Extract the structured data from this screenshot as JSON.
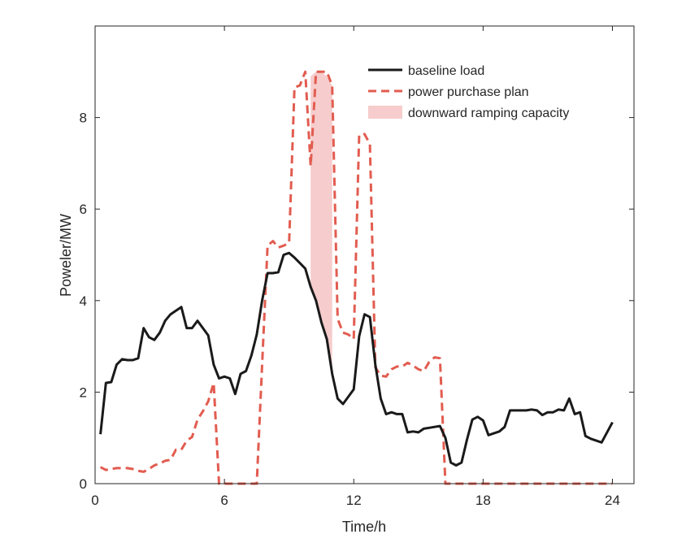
{
  "chart_data": {
    "type": "line",
    "xlabel": "Time/h",
    "ylabel": "Poweler/MW",
    "xlim": [
      0,
      25
    ],
    "ylim": [
      0,
      10
    ],
    "xticks": [
      0,
      6,
      12,
      18,
      24
    ],
    "yticks": [
      0,
      2,
      4,
      6,
      8
    ],
    "xtick_labels": [
      "0",
      "6",
      "12",
      "18",
      "24"
    ],
    "ytick_labels": [
      "0",
      "2",
      "4",
      "6",
      "8"
    ],
    "grid": false,
    "legend_position": "top-right",
    "series": [
      {
        "name": "baseline load",
        "color": "#1a1a1a",
        "style": "solid",
        "points": [
          [
            0.25,
            1.08
          ],
          [
            0.5,
            2.2
          ],
          [
            0.75,
            2.22
          ],
          [
            1.0,
            2.6
          ],
          [
            1.25,
            2.72
          ],
          [
            1.5,
            2.7
          ],
          [
            1.75,
            2.7
          ],
          [
            2.0,
            2.74
          ],
          [
            2.25,
            3.4
          ],
          [
            2.5,
            3.2
          ],
          [
            2.75,
            3.14
          ],
          [
            3.0,
            3.3
          ],
          [
            3.25,
            3.56
          ],
          [
            3.5,
            3.7
          ],
          [
            3.75,
            3.78
          ],
          [
            4.0,
            3.86
          ],
          [
            4.25,
            3.4
          ],
          [
            4.5,
            3.4
          ],
          [
            4.75,
            3.56
          ],
          [
            5.0,
            3.4
          ],
          [
            5.25,
            3.24
          ],
          [
            5.5,
            2.6
          ],
          [
            5.75,
            2.3
          ],
          [
            6.0,
            2.34
          ],
          [
            6.25,
            2.3
          ],
          [
            6.5,
            1.96
          ],
          [
            6.75,
            2.4
          ],
          [
            7.0,
            2.46
          ],
          [
            7.25,
            2.8
          ],
          [
            7.5,
            3.26
          ],
          [
            7.75,
            4.0
          ],
          [
            8.0,
            4.6
          ],
          [
            8.25,
            4.6
          ],
          [
            8.5,
            4.62
          ],
          [
            8.75,
            5.0
          ],
          [
            9.0,
            5.04
          ],
          [
            9.25,
            4.94
          ],
          [
            9.5,
            4.82
          ],
          [
            9.75,
            4.7
          ],
          [
            10.0,
            4.3
          ],
          [
            10.25,
            4.0
          ],
          [
            10.5,
            3.52
          ],
          [
            10.75,
            3.16
          ],
          [
            11.0,
            2.4
          ],
          [
            11.25,
            1.86
          ],
          [
            11.5,
            1.74
          ],
          [
            11.75,
            1.9
          ],
          [
            12.0,
            2.06
          ],
          [
            12.25,
            3.22
          ],
          [
            12.5,
            3.7
          ],
          [
            12.75,
            3.64
          ],
          [
            13.0,
            2.6
          ],
          [
            13.25,
            1.86
          ],
          [
            13.5,
            1.52
          ],
          [
            13.75,
            1.56
          ],
          [
            14.0,
            1.52
          ],
          [
            14.25,
            1.52
          ],
          [
            14.5,
            1.12
          ],
          [
            14.75,
            1.14
          ],
          [
            15.0,
            1.12
          ],
          [
            15.25,
            1.2
          ],
          [
            15.5,
            1.22
          ],
          [
            15.75,
            1.24
          ],
          [
            16.0,
            1.26
          ],
          [
            16.25,
            1.0
          ],
          [
            16.5,
            0.46
          ],
          [
            16.75,
            0.4
          ],
          [
            17.0,
            0.46
          ],
          [
            17.25,
            0.96
          ],
          [
            17.5,
            1.4
          ],
          [
            17.75,
            1.46
          ],
          [
            18.0,
            1.38
          ],
          [
            18.25,
            1.06
          ],
          [
            18.5,
            1.1
          ],
          [
            18.75,
            1.14
          ],
          [
            19.0,
            1.24
          ],
          [
            19.25,
            1.6
          ],
          [
            19.5,
            1.6
          ],
          [
            19.75,
            1.6
          ],
          [
            20.0,
            1.6
          ],
          [
            20.25,
            1.62
          ],
          [
            20.5,
            1.6
          ],
          [
            20.75,
            1.5
          ],
          [
            21.0,
            1.56
          ],
          [
            21.25,
            1.56
          ],
          [
            21.5,
            1.62
          ],
          [
            21.75,
            1.6
          ],
          [
            22.0,
            1.86
          ],
          [
            22.25,
            1.52
          ],
          [
            22.5,
            1.56
          ],
          [
            22.75,
            1.04
          ],
          [
            23.0,
            0.98
          ],
          [
            23.25,
            0.94
          ],
          [
            23.5,
            0.9
          ],
          [
            24.0,
            1.34
          ]
        ]
      },
      {
        "name": "power purchase plan",
        "color": "#e25c50",
        "style": "dashed",
        "points": [
          [
            0.25,
            0.36
          ],
          [
            0.5,
            0.3
          ],
          [
            0.75,
            0.32
          ],
          [
            1.0,
            0.34
          ],
          [
            1.25,
            0.34
          ],
          [
            1.5,
            0.34
          ],
          [
            1.75,
            0.32
          ],
          [
            2.0,
            0.28
          ],
          [
            2.25,
            0.26
          ],
          [
            2.5,
            0.32
          ],
          [
            2.75,
            0.4
          ],
          [
            3.0,
            0.44
          ],
          [
            3.25,
            0.5
          ],
          [
            3.5,
            0.52
          ],
          [
            3.75,
            0.74
          ],
          [
            4.0,
            0.74
          ],
          [
            4.25,
            0.94
          ],
          [
            4.5,
            1.02
          ],
          [
            4.75,
            1.4
          ],
          [
            5.0,
            1.58
          ],
          [
            5.25,
            1.8
          ],
          [
            5.5,
            2.2
          ],
          [
            5.75,
            0.0
          ],
          [
            6.0,
            0.0
          ],
          [
            6.25,
            0.0
          ],
          [
            6.5,
            0.0
          ],
          [
            6.75,
            0.0
          ],
          [
            7.0,
            0.0
          ],
          [
            7.25,
            0.0
          ],
          [
            7.5,
            0.0
          ],
          [
            7.75,
            2.6
          ],
          [
            8.0,
            5.2
          ],
          [
            8.25,
            5.3
          ],
          [
            8.5,
            5.16
          ],
          [
            8.75,
            5.2
          ],
          [
            9.0,
            5.26
          ],
          [
            9.25,
            8.66
          ],
          [
            9.5,
            8.7
          ],
          [
            9.75,
            9.0
          ],
          [
            10.0,
            6.94
          ],
          [
            10.25,
            9.0
          ],
          [
            10.5,
            9.0
          ],
          [
            10.75,
            9.0
          ],
          [
            11.0,
            8.7
          ],
          [
            11.25,
            3.6
          ],
          [
            11.5,
            3.3
          ],
          [
            11.75,
            3.26
          ],
          [
            12.0,
            3.16
          ],
          [
            12.25,
            7.62
          ],
          [
            12.5,
            7.64
          ],
          [
            12.75,
            7.42
          ],
          [
            13.0,
            2.54
          ],
          [
            13.25,
            2.36
          ],
          [
            13.5,
            2.34
          ],
          [
            13.75,
            2.5
          ],
          [
            14.0,
            2.56
          ],
          [
            14.25,
            2.56
          ],
          [
            14.5,
            2.64
          ],
          [
            14.75,
            2.58
          ],
          [
            15.0,
            2.5
          ],
          [
            15.25,
            2.46
          ],
          [
            15.5,
            2.66
          ],
          [
            15.75,
            2.76
          ],
          [
            16.0,
            2.74
          ],
          [
            16.25,
            0.0
          ],
          [
            17.0,
            0.0
          ],
          [
            18.0,
            0.0
          ],
          [
            19.0,
            0.0
          ],
          [
            20.0,
            0.0
          ],
          [
            21.0,
            0.0
          ],
          [
            22.0,
            0.0
          ],
          [
            23.0,
            0.0
          ],
          [
            24.0,
            0.0
          ]
        ]
      }
    ],
    "bands": [
      {
        "name": "downward ramping capacity",
        "color": "#f6cccc",
        "x": [
          10.0,
          10.25,
          10.5,
          10.75,
          11.0
        ],
        "upper": [
          8.9,
          9.0,
          9.0,
          8.9,
          8.7
        ],
        "lower": [
          4.3,
          4.0,
          3.52,
          3.16,
          2.4
        ]
      }
    ]
  }
}
